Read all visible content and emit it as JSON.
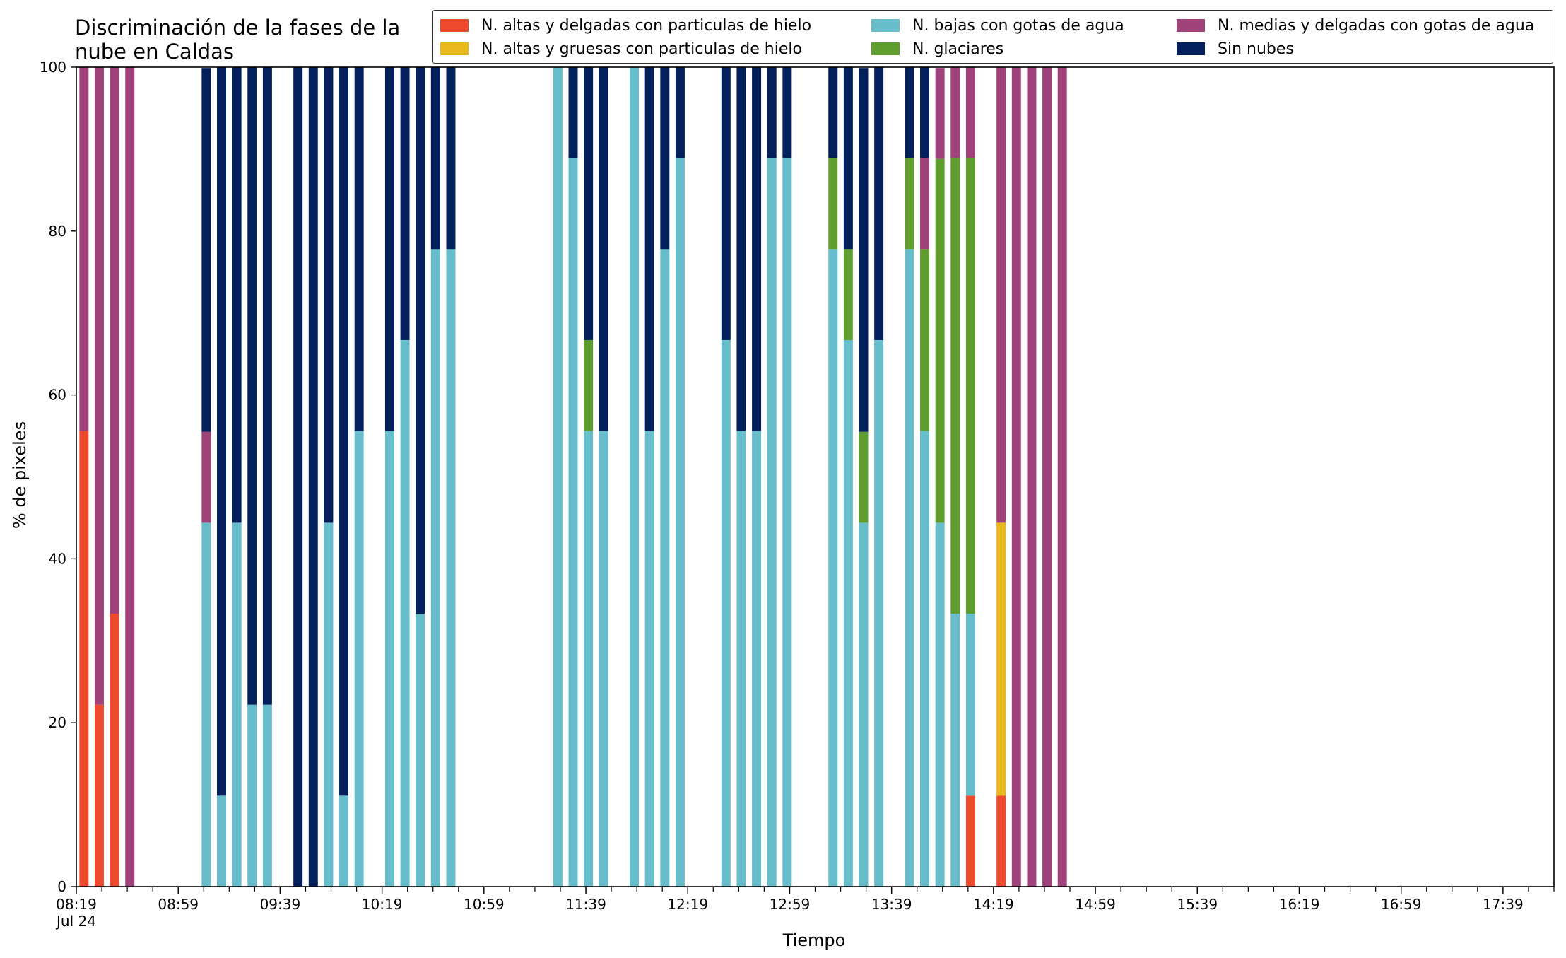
{
  "chart_data": {
    "type": "bar",
    "stacked": true,
    "title": "Discriminación de la fases de la\nnube en Caldas",
    "xlabel": "Tiempo",
    "ylabel": "% de pixeles",
    "ylim": [
      0,
      100
    ],
    "yticks": [
      0,
      20,
      40,
      60,
      80,
      100
    ],
    "x_range": [
      "08:19",
      "17:59"
    ],
    "x_tick_step_minutes": 10,
    "x_tick_labels": [
      {
        "at": "08:19",
        "label": "08:19",
        "sublabel": "Jul 24"
      },
      {
        "at": "08:59",
        "label": "08:59"
      },
      {
        "at": "09:39",
        "label": "09:39"
      },
      {
        "at": "10:19",
        "label": "10:19"
      },
      {
        "at": "10:59",
        "label": "10:59"
      },
      {
        "at": "11:39",
        "label": "11:39"
      },
      {
        "at": "12:19",
        "label": "12:19"
      },
      {
        "at": "12:59",
        "label": "12:59"
      },
      {
        "at": "13:39",
        "label": "13:39"
      },
      {
        "at": "14:19",
        "label": "14:19"
      },
      {
        "at": "14:59",
        "label": "14:59"
      },
      {
        "at": "15:39",
        "label": "15:39"
      },
      {
        "at": "16:19",
        "label": "16:19"
      },
      {
        "at": "16:59",
        "label": "16:59"
      },
      {
        "at": "17:39",
        "label": "17:39"
      }
    ],
    "legend_position": "top-right",
    "series": [
      {
        "name": "N. altas y delgadas con particulas de hielo",
        "color": "#ee4a2d"
      },
      {
        "name": "N. altas y gruesas con particulas de hielo",
        "color": "#e8b91c"
      },
      {
        "name": "N. bajas con gotas de agua",
        "color": "#67bdc9"
      },
      {
        "name": "N. glaciares",
        "color": "#5f9e2e"
      },
      {
        "name": "N. medias y delgadas con gotas de agua",
        "color": "#a0427a"
      },
      {
        "name": "Sin nubes",
        "color": "#03205c"
      }
    ],
    "legend_order": [
      0,
      2,
      4,
      1,
      3,
      5
    ],
    "bars": [
      {
        "x": "08:22",
        "values": [
          55.6,
          0,
          0,
          0,
          44.4,
          0
        ]
      },
      {
        "x": "08:28",
        "values": [
          22.2,
          0,
          0,
          0,
          77.8,
          0
        ]
      },
      {
        "x": "08:34",
        "values": [
          33.3,
          0,
          0,
          0,
          66.7,
          0
        ]
      },
      {
        "x": "08:40",
        "values": [
          0,
          0,
          0,
          0,
          100,
          0
        ]
      },
      {
        "x": "09:10",
        "values": [
          0,
          0,
          44.4,
          0,
          11.1,
          44.4
        ]
      },
      {
        "x": "09:16",
        "values": [
          0,
          0,
          11.1,
          0,
          0,
          88.9
        ]
      },
      {
        "x": "09:22",
        "values": [
          0,
          0,
          44.4,
          0,
          0,
          55.6
        ]
      },
      {
        "x": "09:28",
        "values": [
          0,
          0,
          22.2,
          0,
          0,
          77.8
        ]
      },
      {
        "x": "09:34",
        "values": [
          0,
          0,
          22.2,
          0,
          0,
          77.8
        ]
      },
      {
        "x": "09:46",
        "values": [
          0,
          0,
          0,
          0,
          0,
          100
        ]
      },
      {
        "x": "09:52",
        "values": [
          0,
          0,
          0,
          0,
          0,
          100
        ]
      },
      {
        "x": "09:58",
        "values": [
          0,
          0,
          44.4,
          0,
          0,
          55.6
        ]
      },
      {
        "x": "10:04",
        "values": [
          0,
          0,
          11.1,
          0,
          0,
          88.9
        ]
      },
      {
        "x": "10:10",
        "values": [
          0,
          0,
          55.6,
          0,
          0,
          44.4
        ]
      },
      {
        "x": "10:22",
        "values": [
          0,
          0,
          55.6,
          0,
          0,
          44.4
        ]
      },
      {
        "x": "10:28",
        "values": [
          0,
          0,
          66.7,
          0,
          0,
          33.3
        ]
      },
      {
        "x": "10:34",
        "values": [
          0,
          0,
          33.3,
          0,
          0,
          66.7
        ]
      },
      {
        "x": "10:40",
        "values": [
          0,
          0,
          77.8,
          0,
          0,
          22.2
        ]
      },
      {
        "x": "10:46",
        "values": [
          0,
          0,
          77.8,
          0,
          0,
          22.2
        ]
      },
      {
        "x": "11:28",
        "values": [
          0,
          0,
          100,
          0,
          0,
          0
        ]
      },
      {
        "x": "11:34",
        "values": [
          0,
          0,
          88.9,
          0,
          0,
          11.1
        ]
      },
      {
        "x": "11:40",
        "values": [
          0,
          0,
          55.6,
          11.1,
          0,
          33.3
        ]
      },
      {
        "x": "11:46",
        "values": [
          0,
          0,
          55.6,
          0,
          0,
          44.4
        ]
      },
      {
        "x": "11:58",
        "values": [
          0,
          0,
          100,
          0,
          0,
          0
        ]
      },
      {
        "x": "12:04",
        "values": [
          0,
          0,
          55.6,
          0,
          0,
          44.4
        ]
      },
      {
        "x": "12:10",
        "values": [
          0,
          0,
          77.8,
          0,
          0,
          22.2
        ]
      },
      {
        "x": "12:16",
        "values": [
          0,
          0,
          88.9,
          0,
          0,
          11.1
        ]
      },
      {
        "x": "12:34",
        "values": [
          0,
          0,
          66.7,
          0,
          0,
          33.3
        ]
      },
      {
        "x": "12:40",
        "values": [
          0,
          0,
          55.6,
          0,
          0,
          44.4
        ]
      },
      {
        "x": "12:46",
        "values": [
          0,
          0,
          55.6,
          0,
          0,
          44.4
        ]
      },
      {
        "x": "12:52",
        "values": [
          0,
          0,
          88.9,
          0,
          0,
          11.1
        ]
      },
      {
        "x": "12:58",
        "values": [
          0,
          0,
          88.9,
          0,
          0,
          11.1
        ]
      },
      {
        "x": "13:16",
        "values": [
          0,
          0,
          77.8,
          11.1,
          0,
          11.1
        ]
      },
      {
        "x": "13:22",
        "values": [
          0,
          0,
          66.7,
          11.1,
          0,
          22.2
        ]
      },
      {
        "x": "13:28",
        "values": [
          0,
          0,
          44.4,
          11.1,
          0,
          44.4
        ]
      },
      {
        "x": "13:34",
        "values": [
          0,
          0,
          66.7,
          0,
          0,
          33.3
        ]
      },
      {
        "x": "13:46",
        "values": [
          0,
          0,
          77.8,
          11.1,
          0,
          11.1
        ]
      },
      {
        "x": "13:52",
        "values": [
          0,
          0,
          55.6,
          22.2,
          11.1,
          11.1
        ]
      },
      {
        "x": "13:58",
        "values": [
          0,
          0,
          44.4,
          44.4,
          11.1,
          0
        ]
      },
      {
        "x": "14:04",
        "values": [
          0,
          0,
          33.3,
          55.6,
          11.1,
          0
        ]
      },
      {
        "x": "14:10",
        "values": [
          11.1,
          0,
          22.2,
          55.6,
          11.1,
          0
        ]
      },
      {
        "x": "14:22",
        "values": [
          11.1,
          33.3,
          0,
          0,
          55.6,
          0
        ]
      },
      {
        "x": "14:28",
        "values": [
          0,
          0,
          0,
          0,
          100,
          0
        ]
      },
      {
        "x": "14:34",
        "values": [
          0,
          0,
          0,
          0,
          100,
          0
        ]
      },
      {
        "x": "14:40",
        "values": [
          0,
          0,
          0,
          0,
          100,
          0
        ]
      },
      {
        "x": "14:46",
        "values": [
          0,
          0,
          0,
          0,
          100,
          0
        ]
      }
    ]
  }
}
